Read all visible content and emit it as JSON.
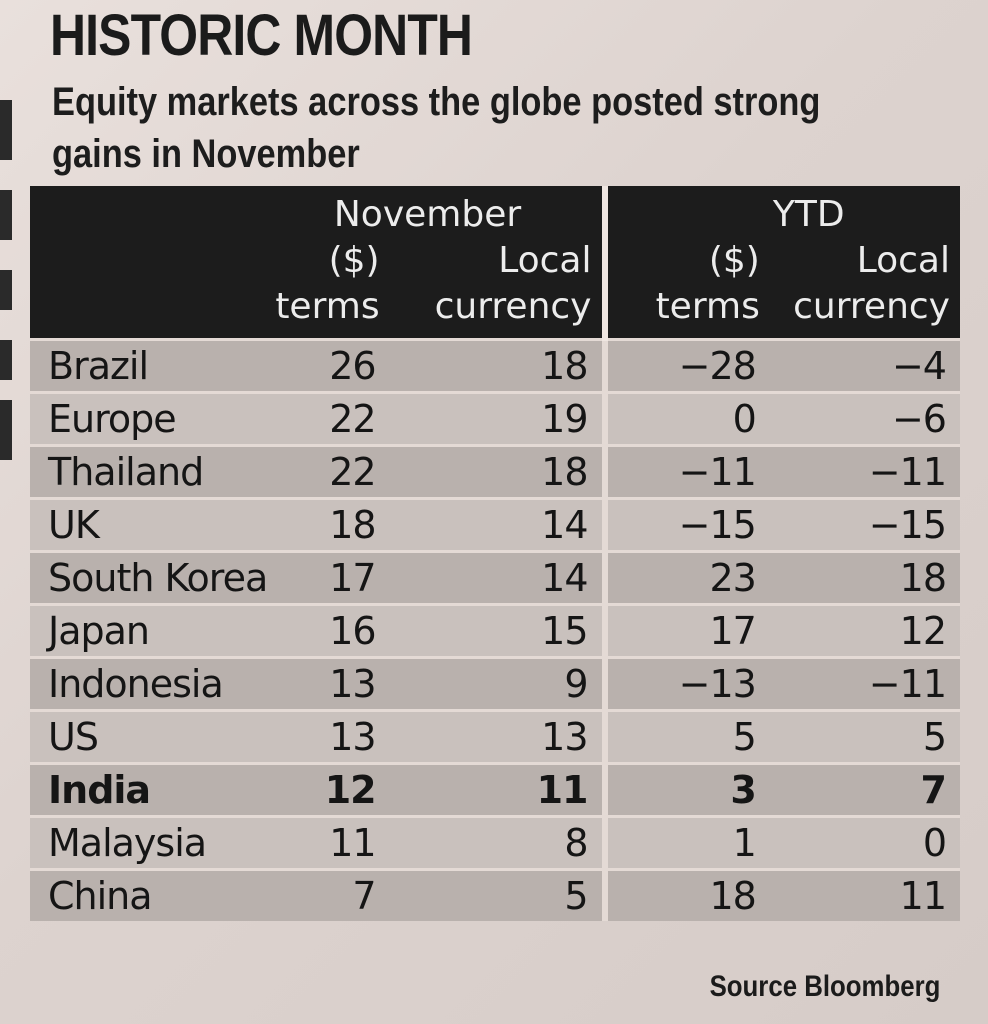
{
  "title": "HISTORIC MONTH",
  "subtitle": "Equity markets across the globe posted strong gains in November",
  "source": "Source Bloomberg",
  "chart_data": {
    "type": "table",
    "title": "HISTORIC MONTH",
    "subtitle": "Equity markets across the globe posted strong gains in November",
    "column_groups": [
      "November",
      "YTD"
    ],
    "column_subheaders": [
      [
        "($)",
        "terms"
      ],
      [
        "Local",
        "currency"
      ]
    ],
    "columns": [
      "November ($) terms",
      "November Local currency",
      "YTD ($) terms",
      "YTD Local currency"
    ],
    "rows": [
      {
        "country": "Brazil",
        "values": [
          26,
          18,
          -28,
          -4
        ]
      },
      {
        "country": "Europe",
        "values": [
          22,
          19,
          0,
          -6
        ]
      },
      {
        "country": "Thailand",
        "values": [
          22,
          18,
          -11,
          -11
        ]
      },
      {
        "country": "UK",
        "values": [
          18,
          14,
          -15,
          -15
        ]
      },
      {
        "country": "South Korea",
        "values": [
          17,
          14,
          23,
          18
        ]
      },
      {
        "country": "Japan",
        "values": [
          16,
          15,
          17,
          12
        ]
      },
      {
        "country": "Indonesia",
        "values": [
          13,
          9,
          -13,
          -11
        ]
      },
      {
        "country": "US",
        "values": [
          13,
          13,
          5,
          5
        ]
      },
      {
        "country": "India",
        "values": [
          12,
          11,
          3,
          7
        ]
      },
      {
        "country": "Malaysia",
        "values": [
          11,
          8,
          1,
          0
        ]
      },
      {
        "country": "China",
        "values": [
          7,
          5,
          18,
          11
        ]
      }
    ],
    "highlight_row": "India",
    "source": "Source Bloomberg"
  }
}
